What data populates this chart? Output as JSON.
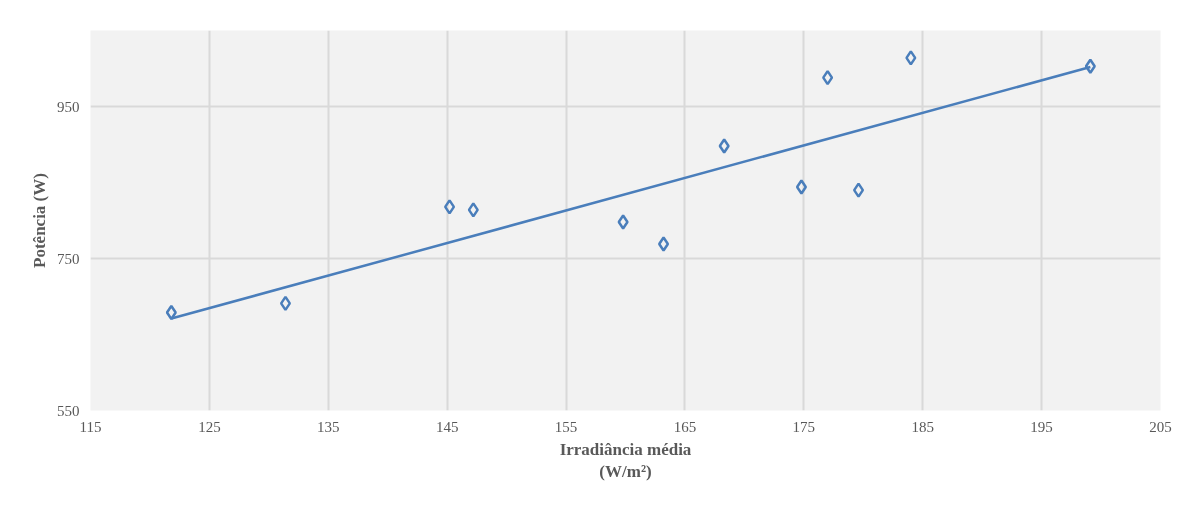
{
  "chart_data": {
    "type": "scatter",
    "xlabel": "Irradiância média\n(W/m²)",
    "ylabel": "Potência (W)",
    "xlim": [
      115,
      205
    ],
    "xticks": [
      115,
      125,
      135,
      145,
      155,
      165,
      175,
      185,
      195,
      205
    ],
    "ylim": [
      550,
      1050
    ],
    "yticks": [
      550,
      750,
      950
    ],
    "grid": true,
    "series": [
      {
        "color": "#4a7ebb",
        "marker": "diamond",
        "x": [
          121.8,
          131.4,
          145.2,
          147.2,
          159.8,
          163.2,
          168.3,
          174.8,
          177.0,
          179.6,
          184.0,
          199.1
        ],
        "values": [
          679,
          691,
          818,
          814,
          798,
          769,
          898,
          844,
          988,
          840,
          1014,
          1003
        ]
      },
      {
        "type": "line",
        "color": "#4a7ebb",
        "line_style": "solid",
        "x": [
          121.8,
          199.1
        ],
        "values": [
          671,
          1002
        ]
      }
    ]
  }
}
